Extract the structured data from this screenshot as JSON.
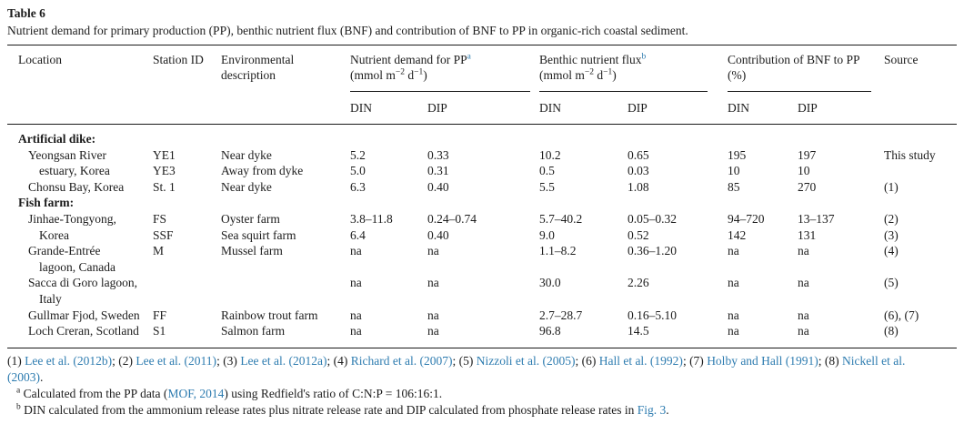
{
  "colors": {
    "text": "#1c1c1c",
    "link": "#2e7cb0",
    "rule": "#1a1a1a",
    "background": "#ffffff"
  },
  "table_label": "Table 6",
  "caption": "Nutrient demand for primary production (PP), benthic nutrient flux (BNF) and contribution of BNF to PP in organic-rich coastal sediment.",
  "header": {
    "location": "Location",
    "station": "Station ID",
    "environment": "Environmental description",
    "group1": {
      "label": "Nutrient demand for PP",
      "sup": "a"
    },
    "group2": {
      "label": "Benthic nutrient flux",
      "sup": "b"
    },
    "group3": {
      "label": "Contribution of BNF to PP",
      "line2": "(%)"
    },
    "units": {
      "pre": "(mmol m",
      "sup1": "−2",
      "mid": " d",
      "sup2": "−1",
      "post": ")"
    },
    "din": "DIN",
    "dip": "DIP",
    "source": "Source"
  },
  "rows": [
    {
      "type": "section",
      "label": "Artificial dike:"
    },
    {
      "type": "data",
      "indent": 1,
      "cells": [
        "Yeongsan River",
        "YE1",
        "Near dyke",
        "5.2",
        "0.33",
        "10.2",
        "0.65",
        "195",
        "197",
        "This study"
      ]
    },
    {
      "type": "data",
      "indent": 2,
      "cells": [
        "estuary, Korea",
        "YE3",
        "Away from dyke",
        "5.0",
        "0.31",
        "0.5",
        "0.03",
        "10",
        "10",
        ""
      ]
    },
    {
      "type": "data",
      "indent": 1,
      "cells": [
        "Chonsu Bay, Korea",
        "St. 1",
        "Near dyke",
        "6.3",
        "0.40",
        "5.5",
        "1.08",
        "85",
        "270",
        "(1)"
      ]
    },
    {
      "type": "section",
      "label": "Fish farm:"
    },
    {
      "type": "data",
      "indent": 1,
      "cells": [
        "Jinhae-Tongyong,",
        "FS",
        "Oyster farm",
        "3.8–11.8",
        "0.24–0.74",
        "5.7–40.2",
        "0.05–0.32",
        "94–720",
        "13–137",
        "(2)"
      ]
    },
    {
      "type": "data",
      "indent": 2,
      "cells": [
        "Korea",
        "SSF",
        "Sea squirt farm",
        "6.4",
        "0.40",
        "9.0",
        "0.52",
        "142",
        "131",
        "(3)"
      ]
    },
    {
      "type": "data",
      "indent": 1,
      "cells": [
        "Grande-Entrée",
        "M",
        "Mussel farm",
        "na",
        "na",
        "1.1–8.2",
        "0.36–1.20",
        "na",
        "na",
        "(4)"
      ]
    },
    {
      "type": "data",
      "indent": 2,
      "cells": [
        "lagoon, Canada",
        "",
        "",
        "",
        "",
        "",
        "",
        "",
        "",
        ""
      ]
    },
    {
      "type": "data",
      "indent": 1,
      "cells": [
        "Sacca di Goro lagoon,",
        "",
        "",
        "na",
        "na",
        "30.0",
        "2.26",
        "na",
        "na",
        "(5)"
      ]
    },
    {
      "type": "data",
      "indent": 2,
      "cells": [
        "Italy",
        "",
        "",
        "",
        "",
        "",
        "",
        "",
        "",
        ""
      ]
    },
    {
      "type": "data",
      "indent": 1,
      "cells": [
        "Gullmar Fjod, Sweden",
        "FF",
        "Rainbow trout farm",
        "na",
        "na",
        "2.7–28.7",
        "0.16–5.10",
        "na",
        "na",
        "(6), (7)"
      ]
    },
    {
      "type": "data",
      "indent": 1,
      "cells": [
        "Loch Creran, Scotland",
        "S1",
        "Salmon farm",
        "na",
        "na",
        "96.8",
        "14.5",
        "na",
        "na",
        "(8)"
      ]
    }
  ],
  "footnotes": {
    "refs_line1": [
      {
        "t": "(1) "
      },
      {
        "t": "Lee et al. (2012b)",
        "link": true
      },
      {
        "t": "; (2) "
      },
      {
        "t": "Lee et al. (2011)",
        "link": true
      },
      {
        "t": "; (3) "
      },
      {
        "t": "Lee et al. (2012a)",
        "link": true
      },
      {
        "t": "; (4) "
      },
      {
        "t": "Richard et al. (2007)",
        "link": true
      },
      {
        "t": "; (5) "
      },
      {
        "t": "Nizzoli et al. (2005)",
        "link": true
      },
      {
        "t": "; (6) "
      },
      {
        "t": "Hall et al. (1992)",
        "link": true
      },
      {
        "t": "; (7) "
      },
      {
        "t": "Holby and Hall (1991)",
        "link": true
      },
      {
        "t": "; (8) "
      },
      {
        "t": "Nickell et al.",
        "link": true
      }
    ],
    "refs_line2": [
      {
        "t": "(2003)",
        "link": true
      },
      {
        "t": "."
      }
    ],
    "note_a": [
      {
        "sup": "a"
      },
      {
        "t": " Calculated from the PP data ("
      },
      {
        "t": "MOF, 2014",
        "link": true
      },
      {
        "t": ") using Redfield's ratio of C:N:P = 106:16:1."
      }
    ],
    "note_b": [
      {
        "sup": "b"
      },
      {
        "t": " DIN calculated from the ammonium release rates plus nitrate release rate and DIP calculated from phosphate release rates in "
      },
      {
        "t": "Fig. 3",
        "link": true
      },
      {
        "t": "."
      }
    ]
  }
}
